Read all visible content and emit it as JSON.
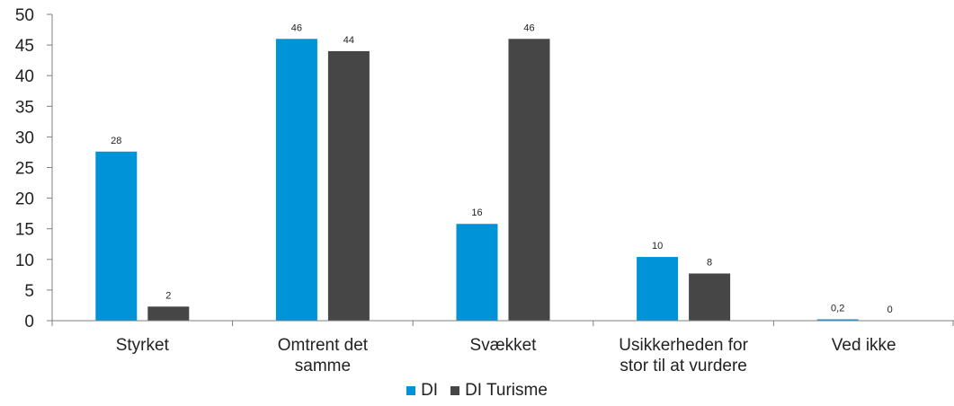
{
  "chart_data": {
    "type": "bar",
    "title": "",
    "xlabel": "",
    "ylabel": "",
    "ylim": [
      0,
      50
    ],
    "yticks": [
      0,
      5,
      10,
      15,
      20,
      25,
      30,
      35,
      40,
      45,
      50
    ],
    "grid": false,
    "legend_position": "bottom",
    "categories": [
      [
        "Styrket"
      ],
      [
        "Omtrent det",
        "samme"
      ],
      [
        "Svækket"
      ],
      [
        "Usikkerheden for",
        "stor til at vurdere"
      ],
      [
        "Ved ikke"
      ]
    ],
    "series": [
      {
        "name": "DI",
        "color": "#0093D8",
        "values": [
          27.6,
          46,
          15.8,
          10.4,
          0.2
        ],
        "labels": [
          "28",
          "46",
          "16",
          "10",
          "0,2"
        ]
      },
      {
        "name": "DI Turisme",
        "color": "#464646",
        "values": [
          2.3,
          44,
          46,
          7.7,
          0
        ],
        "labels": [
          "2",
          "44",
          "46",
          "8",
          "0"
        ]
      }
    ]
  }
}
